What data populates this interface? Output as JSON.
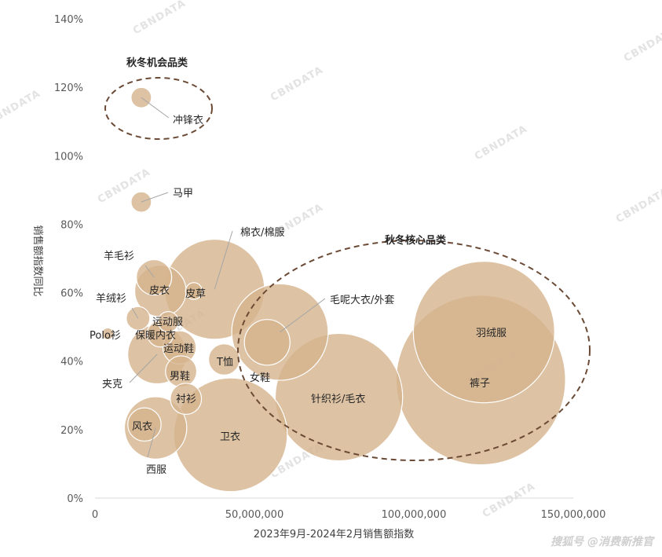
{
  "chart_data": {
    "type": "scatter",
    "subtype": "bubble",
    "xlabel": "2023年9月-2024年2月销售额指数",
    "ylabel": "销售额指数同比",
    "xlim": [
      0,
      150000000
    ],
    "ylim": [
      0,
      1.4
    ],
    "x_ticks": [
      "0",
      "50,000,000",
      "100,000,000",
      "150,000,000"
    ],
    "y_ticks": [
      "0%",
      "20%",
      "40%",
      "60%",
      "80%",
      "100%",
      "120%",
      "140%"
    ],
    "grid": false,
    "bubble_color": "#d5b48f",
    "group_outline_color": "#6b4a36",
    "points": [
      {
        "label": "冲锋衣",
        "x": 14500000,
        "y": 1.17,
        "size": 3
      },
      {
        "label": "马甲",
        "x": 14500000,
        "y": 0.865,
        "size": 3
      },
      {
        "label": "羊毛衫",
        "x": 18500000,
        "y": 0.645,
        "size": 9
      },
      {
        "label": "皮衣",
        "x": 20500000,
        "y": 0.605,
        "size": 19
      },
      {
        "label": "羊绒衫",
        "x": 13500000,
        "y": 0.525,
        "size": 4
      },
      {
        "label": "运动服",
        "x": 23000000,
        "y": 0.515,
        "size": 3
      },
      {
        "label": "Polo衫",
        "x": 4000000,
        "y": 0.48,
        "size": 1
      },
      {
        "label": "保暖内衣",
        "x": 20500000,
        "y": 0.48,
        "size": 5
      },
      {
        "label": "运动鞋",
        "x": 26500000,
        "y": 0.44,
        "size": 8
      },
      {
        "label": "夹克",
        "x": 19500000,
        "y": 0.42,
        "size": 25
      },
      {
        "label": "男鞋",
        "x": 27000000,
        "y": 0.37,
        "size": 7
      },
      {
        "label": "衬衫",
        "x": 28500000,
        "y": 0.29,
        "size": 7
      },
      {
        "label": "风衣",
        "x": 15500000,
        "y": 0.215,
        "size": 8
      },
      {
        "label": "西服",
        "x": 19000000,
        "y": 0.205,
        "size": 28
      },
      {
        "label": "皮草",
        "x": 31000000,
        "y": 0.605,
        "size": 2
      },
      {
        "label": "棉衣/棉服",
        "x": 37500000,
        "y": 0.61,
        "size": 72
      },
      {
        "label": "T恤",
        "x": 40500000,
        "y": 0.405,
        "size": 7
      },
      {
        "label": "卫衣",
        "x": 42500000,
        "y": 0.185,
        "size": 93
      },
      {
        "label": "女鞋",
        "x": 54000000,
        "y": 0.455,
        "size": 15
      },
      {
        "label": "毛呢大衣/外套",
        "x": 58000000,
        "y": 0.485,
        "size": 67
      },
      {
        "label": "针织衫/毛衣",
        "x": 76500000,
        "y": 0.295,
        "size": 117
      },
      {
        "label": "羽绒服",
        "x": 122000000,
        "y": 0.485,
        "size": 144
      },
      {
        "label": "裤子",
        "x": 121000000,
        "y": 0.345,
        "size": 207
      }
    ],
    "groups": [
      {
        "title": "秋冬机会品类"
      },
      {
        "title": "秋冬核心品类"
      }
    ]
  },
  "watermark_text": "CBNDATA",
  "footer_text": "搜狐号 @消费新推官"
}
